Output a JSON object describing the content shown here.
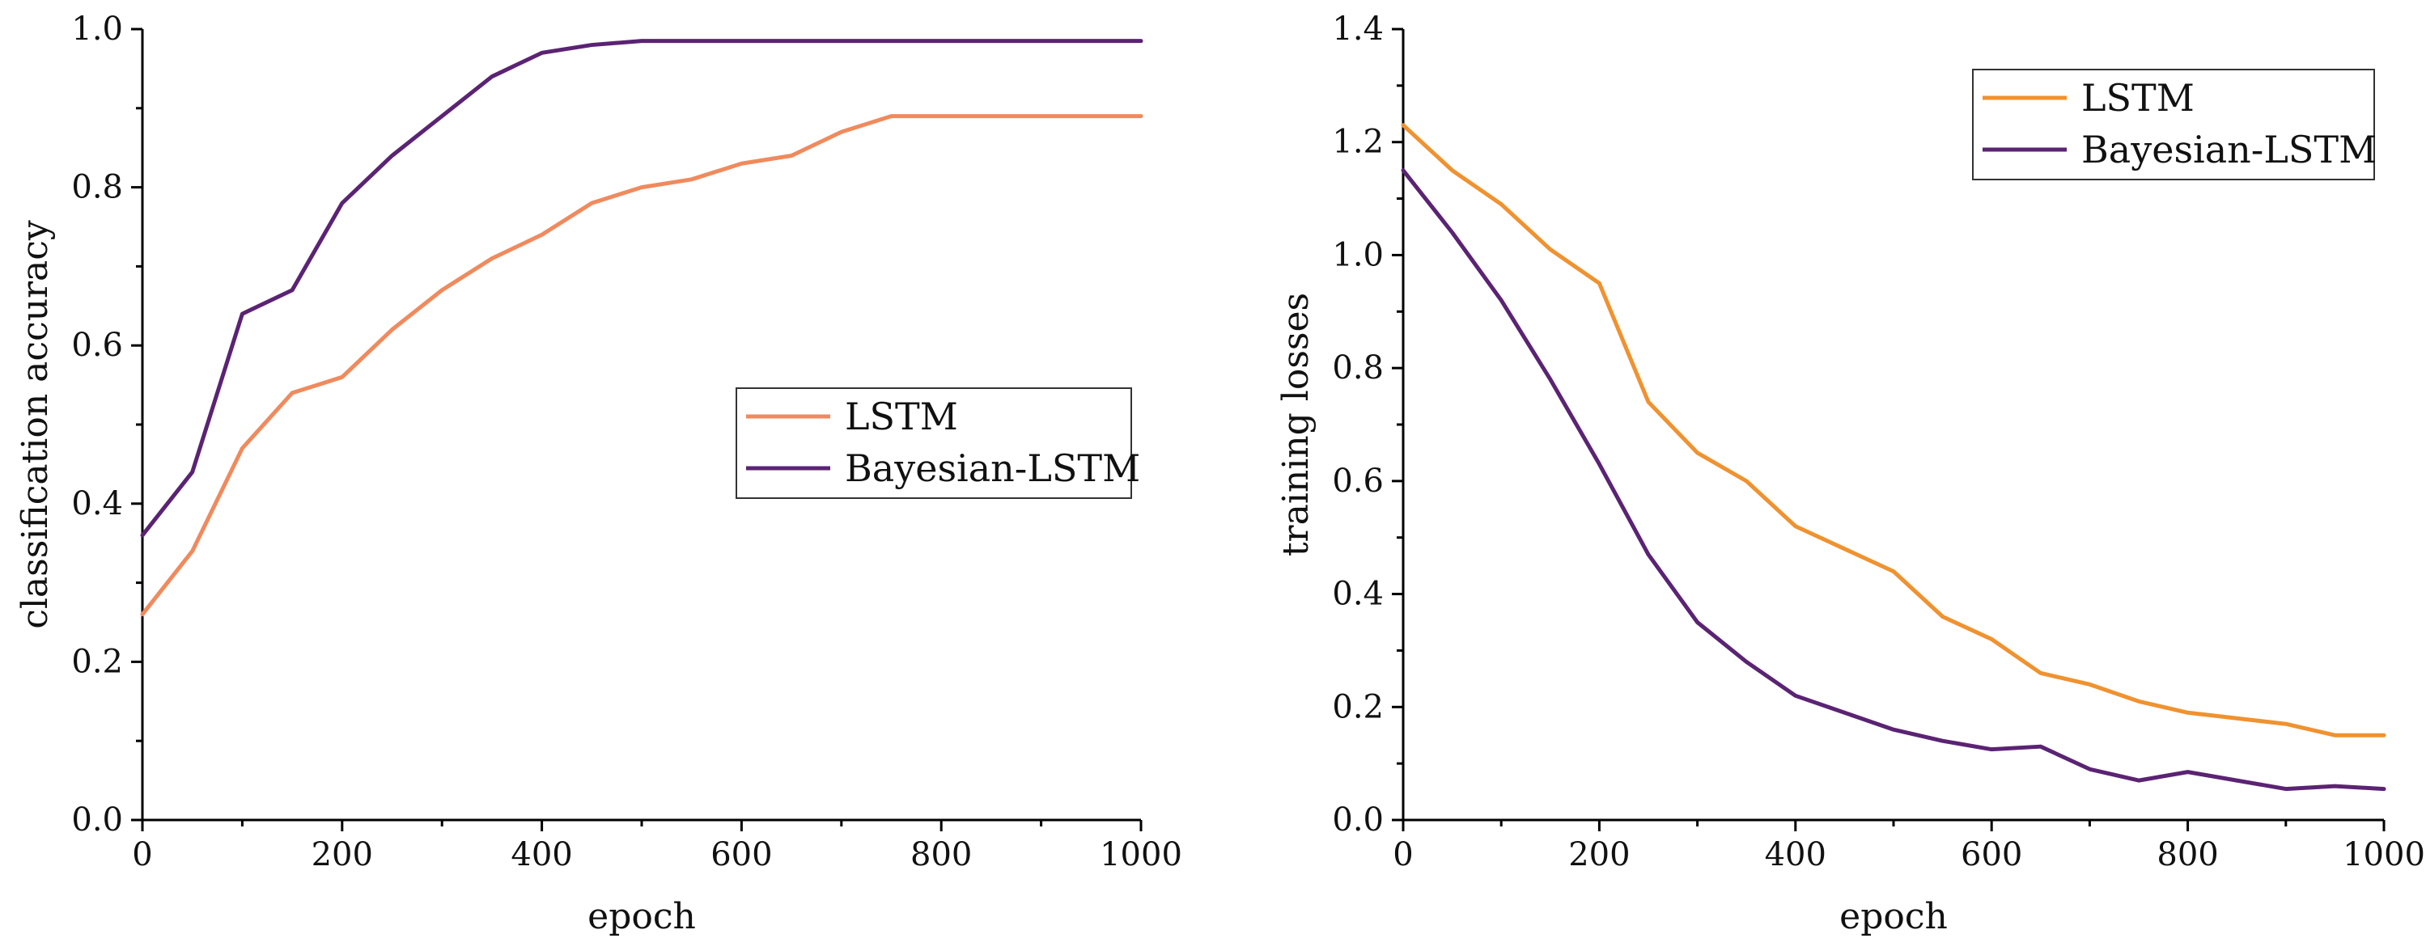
{
  "chart_data": [
    {
      "type": "line",
      "title": "",
      "xlabel": "epoch",
      "ylabel": "classification accuracy",
      "xlim": [
        0,
        1000
      ],
      "ylim": [
        0.0,
        1.0
      ],
      "xticks": [
        0,
        200,
        400,
        600,
        800,
        1000
      ],
      "xtick_labels": [
        "0",
        "200",
        "400",
        "600",
        "800",
        "1000"
      ],
      "yticks": [
        0.0,
        0.2,
        0.4,
        0.6,
        0.8,
        1.0
      ],
      "ytick_labels": [
        "0.0",
        "0.2",
        "0.4",
        "0.6",
        "0.8",
        "1.0"
      ],
      "grid": false,
      "legend_position": "center-right",
      "x": [
        0,
        50,
        100,
        150,
        200,
        250,
        300,
        350,
        400,
        450,
        500,
        550,
        600,
        650,
        700,
        750,
        800,
        850,
        900,
        950,
        1000
      ],
      "series": [
        {
          "name": "LSTM",
          "color": "#f08a5d",
          "values": [
            0.26,
            0.34,
            0.47,
            0.54,
            0.56,
            0.62,
            0.67,
            0.71,
            0.74,
            0.78,
            0.8,
            0.81,
            0.83,
            0.84,
            0.87,
            0.89,
            0.89,
            0.89,
            0.89,
            0.89,
            0.89
          ]
        },
        {
          "name": "Bayesian-LSTM",
          "color": "#5b2373",
          "values": [
            0.36,
            0.44,
            0.64,
            0.67,
            0.78,
            0.84,
            0.89,
            0.94,
            0.97,
            0.98,
            0.985,
            0.985,
            0.985,
            0.985,
            0.985,
            0.985,
            0.985,
            0.985,
            0.985,
            0.985,
            0.985
          ]
        }
      ]
    },
    {
      "type": "line",
      "title": "",
      "xlabel": "epoch",
      "ylabel": "training losses",
      "xlim": [
        0,
        1000
      ],
      "ylim": [
        0.0,
        1.4
      ],
      "xticks": [
        0,
        200,
        400,
        600,
        800,
        1000
      ],
      "xtick_labels": [
        "0",
        "200",
        "400",
        "600",
        "800",
        "1000"
      ],
      "yticks": [
        0.0,
        0.2,
        0.4,
        0.6,
        0.8,
        1.0,
        1.2,
        1.4
      ],
      "ytick_labels": [
        "0.0",
        "0.2",
        "0.4",
        "0.6",
        "0.8",
        "1.0",
        "1.2",
        "1.4"
      ],
      "grid": false,
      "legend_position": "top-right",
      "x": [
        0,
        50,
        100,
        150,
        200,
        250,
        300,
        350,
        400,
        450,
        500,
        550,
        600,
        650,
        700,
        750,
        800,
        850,
        900,
        950,
        1000
      ],
      "series": [
        {
          "name": "LSTM",
          "color": "#f0922f",
          "values": [
            1.23,
            1.15,
            1.09,
            1.01,
            0.95,
            0.74,
            0.65,
            0.6,
            0.52,
            0.48,
            0.44,
            0.36,
            0.32,
            0.26,
            0.24,
            0.21,
            0.19,
            0.18,
            0.17,
            0.15,
            0.15
          ]
        },
        {
          "name": "Bayesian-LSTM",
          "color": "#5b2373",
          "values": [
            1.15,
            1.04,
            0.92,
            0.78,
            0.63,
            0.47,
            0.35,
            0.28,
            0.22,
            0.19,
            0.16,
            0.14,
            0.125,
            0.13,
            0.09,
            0.07,
            0.085,
            0.07,
            0.055,
            0.06,
            0.055
          ]
        }
      ]
    }
  ]
}
